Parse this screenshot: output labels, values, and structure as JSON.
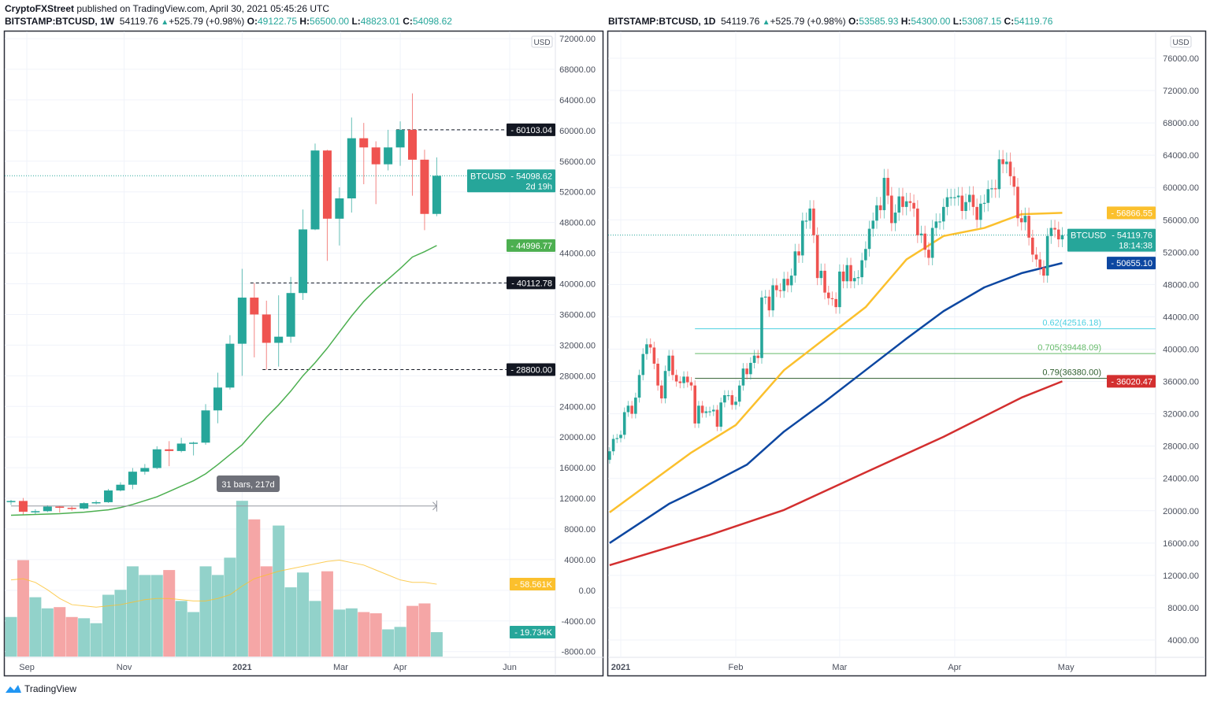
{
  "header": {
    "author": "CryptoFXStreet",
    "published": "published on TradingView.com, April 30, 2021 05:45:26 UTC"
  },
  "left": {
    "symbol": "BITSTAMP:BTCUSD, 1W",
    "last": "54119.76",
    "change": "+525.79 (+0.98%)",
    "o_label": "O:",
    "o": "49122.75",
    "h_label": "H:",
    "h": "56500.00",
    "l_label": "L:",
    "l": "48823.01",
    "c_label": "C:",
    "c": "54098.62"
  },
  "right": {
    "symbol": "BITSTAMP:BTCUSD, 1D",
    "last": "54119.76",
    "change": "+525.79 (+0.98%)",
    "o_label": "O:",
    "o": "53585.93",
    "h_label": "H:",
    "h": "54300.00",
    "l_label": "L:",
    "l": "53087.15",
    "c_label": "C:",
    "c": "54119.76"
  },
  "footer": {
    "brand": "TradingView"
  },
  "colors": {
    "up": "#26a69a",
    "down": "#ef5350",
    "vol_up": "#92d2ca",
    "vol_down": "#f5a6a6",
    "ma_green": "#4caf50",
    "ma_yellow": "#fbc02d",
    "ma_blue": "#0d47a1",
    "ma_red": "#d32f2f",
    "fib_062": "#4dd0e1",
    "fib_0705": "#66bb6a",
    "fib_079": "#2e5e2e"
  },
  "chart_data": [
    {
      "type": "candlestick",
      "interval": "1W",
      "currency": "USD",
      "ylim": [
        -8000,
        72000
      ],
      "y_ticks": [
        "72000.00",
        "68000.00",
        "64000.00",
        "60000.00",
        "56000.00",
        "52000.00",
        "48000.00",
        "44000.00",
        "40000.00",
        "36000.00",
        "32000.00",
        "28000.00",
        "24000.00",
        "20000.00",
        "16000.00",
        "12000.00",
        "8000.00",
        "4000.00",
        "0.00",
        "-4000.00",
        "-8000.00"
      ],
      "x_labels": [
        {
          "text": "Sep",
          "week": 1.3,
          "bold": false
        },
        {
          "text": "Nov",
          "week": 9.3,
          "bold": false
        },
        {
          "text": "2021",
          "week": 19,
          "bold": true
        },
        {
          "text": "Mar",
          "week": 27.1,
          "bold": false
        },
        {
          "text": "Apr",
          "week": 32,
          "bold": false
        },
        {
          "text": "Jun",
          "week": 41,
          "bold": false
        }
      ],
      "ohlc": [
        [
          11640,
          11800,
          11150,
          11660
        ],
        [
          11660,
          12050,
          9900,
          10250
        ],
        [
          10250,
          10580,
          9900,
          10330
        ],
        [
          10330,
          11100,
          10200,
          10930
        ],
        [
          10930,
          11000,
          10150,
          10770
        ],
        [
          10770,
          10950,
          10380,
          10670
        ],
        [
          10670,
          11500,
          10530,
          11370
        ],
        [
          11370,
          11720,
          11200,
          11500
        ],
        [
          11500,
          13230,
          11400,
          13030
        ],
        [
          13030,
          14100,
          12900,
          13780
        ],
        [
          13780,
          15960,
          13200,
          15480
        ],
        [
          15480,
          16480,
          15100,
          15960
        ],
        [
          15960,
          18800,
          15800,
          18400
        ],
        [
          18400,
          19470,
          16200,
          18180
        ],
        [
          18180,
          19900,
          18000,
          19150
        ],
        [
          19150,
          19400,
          17600,
          19270
        ],
        [
          19270,
          24300,
          19000,
          23480
        ],
        [
          23480,
          28400,
          21800,
          26460
        ],
        [
          26460,
          33300,
          26200,
          32180
        ],
        [
          32180,
          41950,
          28000,
          38200
        ],
        [
          38200,
          40100,
          30400,
          36000
        ],
        [
          36000,
          37800,
          28800,
          32300
        ],
        [
          32300,
          38500,
          29200,
          33100
        ],
        [
          33100,
          40900,
          32300,
          38800
        ],
        [
          38800,
          49700,
          37900,
          47100
        ],
        [
          47100,
          58300,
          47000,
          57400
        ],
        [
          57400,
          57500,
          43000,
          48500
        ],
        [
          48500,
          52600,
          45000,
          51150
        ],
        [
          51150,
          61700,
          49300,
          59000
        ],
        [
          59000,
          61000,
          53000,
          57800
        ],
        [
          57800,
          58600,
          50400,
          55600
        ],
        [
          55600,
          60100,
          54800,
          57800
        ],
        [
          57800,
          61200,
          55400,
          60100
        ],
        [
          60100,
          64850,
          51500,
          56200
        ],
        [
          56200,
          57500,
          47000,
          49122.75
        ],
        [
          49122.75,
          56500,
          48823.01,
          54098.62
        ]
      ],
      "volume_k": [
        32,
        78,
        48,
        39,
        40,
        32,
        31,
        27,
        50,
        54,
        73,
        66,
        66,
        70,
        45,
        36,
        73,
        66,
        80,
        126,
        111,
        73,
        106,
        56,
        68,
        45,
        69,
        38,
        39,
        36,
        35,
        22,
        24,
        41,
        43,
        19.734
      ],
      "volume_ma_k": [
        62,
        63,
        60,
        54,
        47,
        42,
        41,
        40,
        41,
        42,
        44,
        46,
        47,
        47,
        46,
        45,
        45,
        47,
        50,
        57,
        63,
        66,
        69,
        71,
        73,
        75,
        77,
        78,
        76,
        74,
        70,
        66,
        62,
        60,
        60,
        58.561
      ],
      "ma": [
        9800,
        9850,
        9900,
        9950,
        10000,
        10100,
        10200,
        10350,
        10500,
        10800,
        11200,
        11700,
        12200,
        12900,
        13600,
        14300,
        15200,
        16400,
        17700,
        19000,
        20800,
        22600,
        24200,
        26000,
        28000,
        29700,
        31600,
        33700,
        35800,
        37700,
        39300,
        40600,
        42000,
        43500,
        44200,
        44996.77
      ],
      "horizontal_levels": [
        {
          "price": 60103.04,
          "label": "60103.04",
          "from_week": 32
        },
        {
          "price": 40112.78,
          "label": "40112.78",
          "from_week": 20
        },
        {
          "price": 28800.0,
          "label": "28800.00",
          "from_week": 21
        }
      ],
      "price_tag": {
        "symbol": "BTCUSD",
        "value": "54098.62",
        "price": 54098.62,
        "countdown": "2d 19h"
      },
      "ma_tag": {
        "value": "44996.77",
        "price": 44996.77
      },
      "volume_ma_tag": "58.561K",
      "volume_tag": "19.734K",
      "measure": {
        "label": "31 bars, 217d",
        "price": 11000,
        "from_week": 0,
        "to_week": 35
      }
    },
    {
      "type": "candlestick",
      "interval": "1D",
      "currency": "USD",
      "ylim": [
        4000,
        76000
      ],
      "y_ticks": [
        "76000.00",
        "72000.00",
        "68000.00",
        "64000.00",
        "60000.00",
        "56000.00",
        "52000.00",
        "48000.00",
        "44000.00",
        "40000.00",
        "36000.00",
        "32000.00",
        "28000.00",
        "24000.00",
        "20000.00",
        "16000.00",
        "12000.00",
        "8000.00",
        "4000.00"
      ],
      "x_labels": [
        {
          "text": "2021",
          "date": "2021-01-01",
          "bold": true
        },
        {
          "text": "Feb",
          "date": "2021-02-01",
          "bold": false
        },
        {
          "text": "Mar",
          "date": "2021-03-01",
          "bold": false
        },
        {
          "text": "Apr",
          "date": "2021-04-01",
          "bold": false
        },
        {
          "text": "May",
          "date": "2021-05-01",
          "bold": false
        }
      ],
      "closes_start_date": "2020-12-28",
      "closes": [
        26300,
        27360,
        28890,
        28990,
        29400,
        32200,
        33000,
        32000,
        34000,
        36800,
        39400,
        40600,
        40200,
        38200,
        35500,
        33900,
        37300,
        39200,
        36800,
        36000,
        35800,
        36600,
        35900,
        35500,
        30800,
        33000,
        32100,
        32300,
        32300,
        32500,
        30400,
        33400,
        34300,
        34300,
        33100,
        33500,
        35500,
        37600,
        36900,
        38300,
        39200,
        38900,
        46400,
        46500,
        44800,
        47900,
        47300,
        47200,
        48700,
        47900,
        49100,
        52100,
        51600,
        55900,
        55900,
        57400,
        54100,
        48800,
        49700,
        47000,
        46300,
        46200,
        45200,
        49600,
        48400,
        50400,
        48400,
        48800,
        48900,
        51000,
        52400,
        54900,
        55900,
        57800,
        57200,
        61200,
        59000,
        55600,
        56900,
        58900,
        57600,
        58300,
        58100,
        57400,
        54100,
        54300,
        52300,
        51300,
        55000,
        55800,
        55800,
        57600,
        58800,
        58800,
        58800,
        59000,
        57100,
        58200,
        59100,
        57600,
        56000,
        58000,
        58100,
        59800,
        59900,
        59800,
        63500,
        62900,
        63200,
        61400,
        60100,
        56200,
        55700,
        56500,
        53800,
        51700,
        51100,
        50100,
        49100,
        54000,
        55000,
        54800,
        53585.93,
        54119.76
      ],
      "ma_lines": [
        {
          "key": "ma_yellow",
          "value": "56866.55",
          "points": [
            [
              "2020-12-29",
              19800
            ],
            [
              "2021-01-20",
              27200
            ],
            [
              "2021-02-01",
              30600
            ],
            [
              "2021-02-14",
              37400
            ],
            [
              "2021-02-25",
              41300
            ],
            [
              "2021-03-08",
              45200
            ],
            [
              "2021-03-19",
              51100
            ],
            [
              "2021-03-29",
              54000
            ],
            [
              "2021-04-09",
              55000
            ],
            [
              "2021-04-19",
              56700
            ],
            [
              "2021-04-30",
              56866.55
            ]
          ]
        },
        {
          "key": "ma_blue",
          "value": "50655.10",
          "points": [
            [
              "2020-12-29",
              16000
            ],
            [
              "2021-01-14",
              20850
            ],
            [
              "2021-01-25",
              23300
            ],
            [
              "2021-02-04",
              25700
            ],
            [
              "2021-02-14",
              29800
            ],
            [
              "2021-02-25",
              33500
            ],
            [
              "2021-03-08",
              37400
            ],
            [
              "2021-03-19",
              41300
            ],
            [
              "2021-03-29",
              44700
            ],
            [
              "2021-04-09",
              47650
            ],
            [
              "2021-04-19",
              49400
            ],
            [
              "2021-04-30",
              50655.1
            ]
          ]
        },
        {
          "key": "ma_red",
          "value": "36020.47",
          "points": [
            [
              "2020-12-29",
              13260
            ],
            [
              "2021-01-25",
              17000
            ],
            [
              "2021-02-14",
              20100
            ],
            [
              "2021-03-08",
              24750
            ],
            [
              "2021-03-29",
              29150
            ],
            [
              "2021-04-19",
              34000
            ],
            [
              "2021-04-30",
              36020.47
            ]
          ]
        }
      ],
      "fib_levels": [
        {
          "key": "fib_062",
          "label": "0.62(42516.18)",
          "price": 42516.18
        },
        {
          "key": "fib_0705",
          "label": "0.705(39448.09)",
          "price": 39448.09
        },
        {
          "key": "fib_079",
          "label": "0.79(36380.00)",
          "price": 36380.0
        }
      ],
      "fib_start_date": "2021-01-21",
      "price_tag": {
        "symbol": "BTCUSD",
        "value": "54119.76",
        "price": 54119.76,
        "countdown": "18:14:38"
      }
    }
  ]
}
